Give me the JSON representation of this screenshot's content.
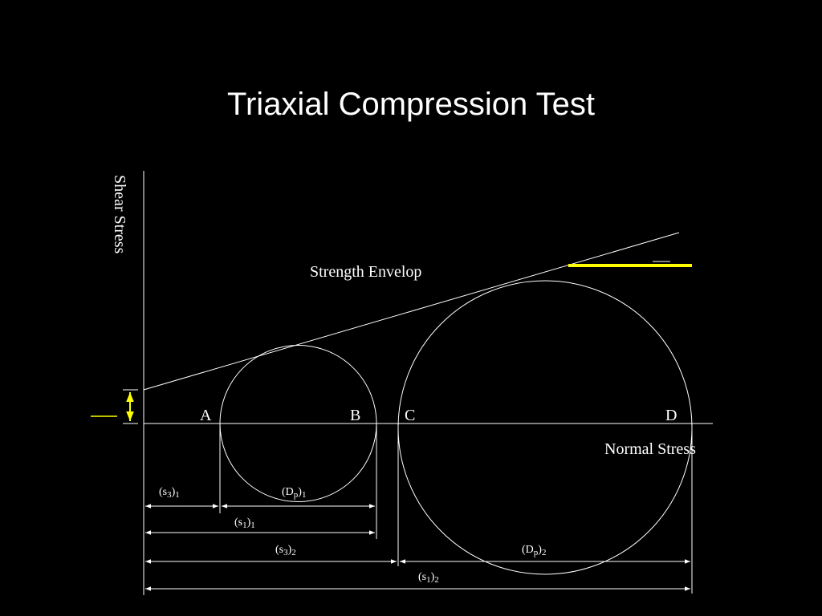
{
  "title": "Triaxial Compression Test",
  "axes": {
    "y_label": "Shear Stress",
    "x_label": "Normal Stress"
  },
  "envelope_label": "Strength Envelop",
  "points": {
    "a": "A",
    "b": "B",
    "c": "C",
    "d": "D"
  },
  "dimensions": {
    "s3_1": {
      "base": "(s",
      "sub": "3",
      "close": ")",
      "index": "1"
    },
    "dp_1": {
      "base": "(D",
      "sub": "p",
      "close": ")",
      "index": "1"
    },
    "s1_1": {
      "base": "(s",
      "sub": "1",
      "close": ")",
      "index": "1"
    },
    "s3_2": {
      "base": "(s",
      "sub": "3",
      "close": ")",
      "index": "2"
    },
    "dp_2": {
      "base": "(D",
      "sub": "p",
      "close": ")",
      "index": "2"
    },
    "s1_2": {
      "base": "(s",
      "sub": "1",
      "close": ")",
      "index": "2"
    }
  },
  "colors": {
    "background": "#000000",
    "lines": "#ffffff",
    "highlight": "#ffff00"
  }
}
